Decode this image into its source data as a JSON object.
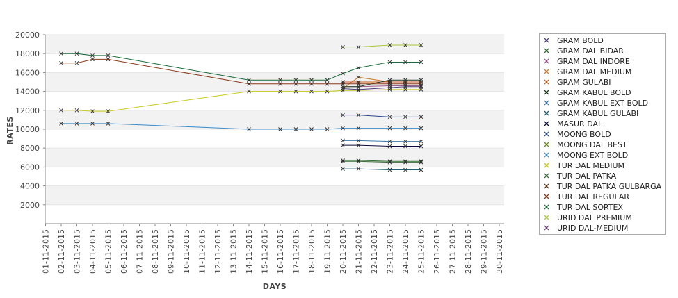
{
  "chart_data": {
    "type": "line",
    "title": "",
    "xlabel": "DAYS",
    "ylabel": "RATES",
    "ylim": [
      0,
      20000
    ],
    "yticks": [
      2000,
      4000,
      6000,
      8000,
      10000,
      12000,
      14000,
      16000,
      18000,
      20000
    ],
    "grid": "horizontal bands",
    "legend_position": "right",
    "categories": [
      "01-11-2015",
      "02-11-2015",
      "03-11-2015",
      "04-11-2015",
      "05-11-2015",
      "06-11-2015",
      "07-11-2015",
      "08-11-2015",
      "09-11-2015",
      "10-11-2015",
      "11-11-2015",
      "12-11-2015",
      "13-11-2015",
      "14-11-2015",
      "15-11-2015",
      "16-11-2015",
      "17-11-2015",
      "18-11-2015",
      "19-11-2015",
      "20-11-2015",
      "21-11-2015",
      "22-11-2015",
      "23-11-2015",
      "24-11-2015",
      "25-11-2015",
      "26-11-2015",
      "27-11-2015",
      "28-11-2015",
      "29-11-2015",
      "30-11-2015"
    ],
    "series": [
      {
        "name": "GRAM BOLD",
        "color": "#4d3f7a",
        "values": [
          null,
          null,
          null,
          null,
          null,
          null,
          null,
          null,
          null,
          null,
          null,
          null,
          null,
          null,
          null,
          null,
          null,
          null,
          null,
          14300,
          14200,
          null,
          14400,
          14500,
          14500,
          null,
          null,
          null,
          null,
          null
        ]
      },
      {
        "name": "GRAM DAL BIDAR",
        "color": "#2e6b2e",
        "values": [
          null,
          null,
          null,
          null,
          null,
          null,
          null,
          null,
          null,
          null,
          null,
          null,
          null,
          null,
          null,
          null,
          null,
          null,
          null,
          6700,
          6700,
          null,
          6600,
          6600,
          6600,
          null,
          null,
          null,
          null,
          null
        ]
      },
      {
        "name": "GRAM DAL INDORE",
        "color": "#a05a8c",
        "values": [
          null,
          null,
          null,
          null,
          null,
          null,
          null,
          null,
          null,
          null,
          null,
          null,
          null,
          null,
          null,
          null,
          null,
          null,
          null,
          14500,
          14500,
          null,
          14600,
          14600,
          14600,
          null,
          null,
          null,
          null,
          null
        ]
      },
      {
        "name": "GRAM DAL MEDIUM",
        "color": "#c87a2e",
        "values": [
          null,
          null,
          null,
          null,
          null,
          null,
          null,
          null,
          null,
          null,
          null,
          null,
          null,
          null,
          null,
          null,
          null,
          null,
          null,
          14300,
          15500,
          null,
          15000,
          15000,
          15000,
          null,
          null,
          null,
          null,
          null
        ]
      },
      {
        "name": "GRAM GULABI",
        "color": "#c85a1e",
        "values": [
          null,
          null,
          null,
          null,
          null,
          null,
          null,
          null,
          null,
          null,
          null,
          null,
          null,
          null,
          null,
          null,
          null,
          null,
          null,
          15000,
          15000,
          null,
          15000,
          15000,
          15000,
          null,
          null,
          null,
          null,
          null
        ]
      },
      {
        "name": "GRAM KABUL BOLD",
        "color": "#1a3a1a",
        "values": [
          null,
          null,
          null,
          null,
          null,
          null,
          null,
          null,
          null,
          null,
          null,
          null,
          null,
          null,
          null,
          null,
          null,
          null,
          null,
          14500,
          14500,
          null,
          15200,
          15200,
          15200,
          null,
          null,
          null,
          null,
          null
        ]
      },
      {
        "name": "GRAM KABUL EXT BOLD",
        "color": "#3a7aa8",
        "values": [
          null,
          null,
          null,
          null,
          null,
          null,
          null,
          null,
          null,
          null,
          null,
          null,
          null,
          null,
          null,
          null,
          null,
          null,
          null,
          8800,
          8800,
          null,
          8700,
          8700,
          8700,
          null,
          null,
          null,
          null,
          null
        ]
      },
      {
        "name": "GRAM KABUL GULABI",
        "color": "#1f5f6f",
        "values": [
          null,
          null,
          null,
          null,
          null,
          null,
          null,
          null,
          null,
          null,
          null,
          null,
          null,
          null,
          null,
          null,
          null,
          null,
          null,
          5800,
          5800,
          null,
          5700,
          5700,
          5700,
          null,
          null,
          null,
          null,
          null
        ]
      },
      {
        "name": "MASUR DAL",
        "color": "#0a0a3a",
        "values": [
          null,
          null,
          null,
          null,
          null,
          null,
          null,
          null,
          null,
          null,
          null,
          null,
          null,
          null,
          null,
          null,
          null,
          null,
          null,
          8300,
          8300,
          null,
          8200,
          8200,
          8200,
          null,
          null,
          null,
          null,
          null
        ]
      },
      {
        "name": "MOONG BOLD",
        "color": "#2a4a8a",
        "values": [
          null,
          null,
          null,
          null,
          null,
          null,
          null,
          null,
          null,
          null,
          null,
          null,
          null,
          null,
          null,
          null,
          null,
          null,
          null,
          11500,
          11500,
          null,
          11300,
          11300,
          11300,
          null,
          null,
          null,
          null,
          null
        ]
      },
      {
        "name": "MOONG DAL BEST",
        "color": "#6a8a1a",
        "values": [
          null,
          null,
          null,
          null,
          null,
          null,
          null,
          null,
          null,
          null,
          null,
          null,
          null,
          null,
          null,
          null,
          null,
          null,
          null,
          null,
          null,
          null,
          null,
          null,
          null,
          null,
          null,
          null,
          null,
          null
        ]
      },
      {
        "name": "MOONG EXT BOLD",
        "color": "#3a8ac8",
        "values": [
          null,
          10600,
          10600,
          10600,
          10600,
          null,
          null,
          null,
          null,
          null,
          null,
          null,
          null,
          10000,
          null,
          10000,
          10000,
          10000,
          10000,
          10100,
          10100,
          null,
          10100,
          10100,
          10100,
          null,
          null,
          null,
          null,
          null
        ]
      },
      {
        "name": "TUR DAL MEDIUM",
        "color": "#c8c820",
        "values": [
          null,
          12000,
          12000,
          11900,
          11900,
          null,
          null,
          null,
          null,
          null,
          null,
          null,
          null,
          14000,
          null,
          14000,
          14000,
          14000,
          14000,
          14100,
          14100,
          null,
          14200,
          14200,
          14200,
          null,
          null,
          null,
          null,
          null
        ]
      },
      {
        "name": "TUR DAL PATKA",
        "color": "#3a6a3a",
        "values": [
          null,
          null,
          null,
          null,
          null,
          null,
          null,
          null,
          null,
          null,
          null,
          null,
          null,
          null,
          null,
          null,
          null,
          null,
          null,
          6600,
          6600,
          null,
          6500,
          6500,
          6500,
          null,
          null,
          null,
          null,
          null
        ]
      },
      {
        "name": "TUR DAL PATKA GULBARGA",
        "color": "#5a3a1a",
        "values": [
          null,
          null,
          null,
          null,
          null,
          null,
          null,
          null,
          null,
          null,
          null,
          null,
          null,
          null,
          null,
          null,
          null,
          null,
          null,
          null,
          null,
          null,
          null,
          null,
          null,
          null,
          null,
          null,
          null,
          null
        ]
      },
      {
        "name": "TUR DAL REGULAR",
        "color": "#8a3a1a",
        "values": [
          null,
          17000,
          17000,
          17400,
          17400,
          null,
          null,
          null,
          null,
          null,
          null,
          null,
          null,
          14800,
          null,
          14800,
          14800,
          14800,
          14800,
          14800,
          14800,
          null,
          14800,
          14800,
          14800,
          null,
          null,
          null,
          null,
          null
        ]
      },
      {
        "name": "TUR DAL SORTEX",
        "color": "#1a6a3a",
        "values": [
          null,
          18000,
          18000,
          17800,
          17800,
          null,
          null,
          null,
          null,
          null,
          null,
          null,
          null,
          15200,
          null,
          15200,
          15200,
          15200,
          15200,
          15900,
          16500,
          null,
          17100,
          17100,
          17100,
          null,
          null,
          null,
          null,
          null
        ]
      },
      {
        "name": "URID DAL PREMIUM",
        "color": "#a8c840",
        "values": [
          null,
          null,
          null,
          null,
          null,
          null,
          null,
          null,
          null,
          null,
          null,
          null,
          null,
          null,
          null,
          null,
          null,
          null,
          null,
          18700,
          18700,
          null,
          18900,
          18900,
          18900,
          null,
          null,
          null,
          null,
          null
        ]
      },
      {
        "name": "URID DAL-MEDIUM",
        "color": "#6a4a7a",
        "values": [
          null,
          null,
          null,
          null,
          null,
          null,
          null,
          null,
          null,
          null,
          null,
          null,
          null,
          null,
          null,
          null,
          null,
          null,
          null,
          null,
          null,
          null,
          null,
          null,
          null,
          null,
          null,
          null,
          null,
          null
        ]
      }
    ]
  }
}
